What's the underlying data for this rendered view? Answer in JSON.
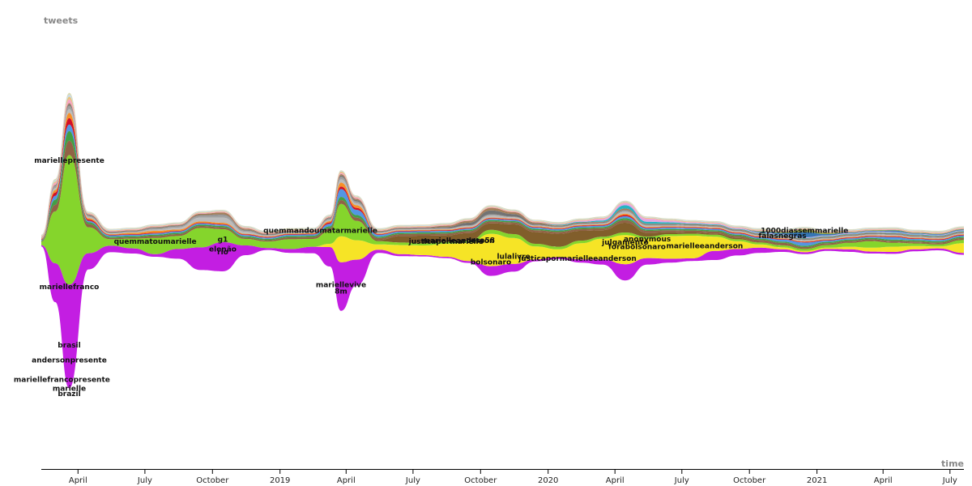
{
  "chart_data": {
    "type": "area",
    "subtype": "streamgraph",
    "ylabel": "tweets",
    "xlabel": "time",
    "x_ticks": [
      "April",
      "July",
      "October",
      "2019",
      "April",
      "July",
      "October",
      "2020",
      "April",
      "July",
      "October",
      "2021",
      "April",
      "July"
    ],
    "x_tick_dates": [
      "2018-04-01",
      "2018-07-01",
      "2018-10-01",
      "2019-01-01",
      "2019-04-01",
      "2019-07-01",
      "2019-10-01",
      "2020-01-01",
      "2020-04-01",
      "2020-07-01",
      "2020-10-01",
      "2021-01-01",
      "2021-04-01",
      "2021-07-01"
    ],
    "x_range": [
      "2018-02-10",
      "2021-07-20"
    ],
    "grid": false,
    "legend": "none (inline labels)",
    "time_points": [
      "2018-02-10",
      "2018-03-01",
      "2018-03-20",
      "2018-04-15",
      "2018-05-15",
      "2018-06-15",
      "2018-07-15",
      "2018-08-15",
      "2018-09-15",
      "2018-10-15",
      "2018-11-15",
      "2018-12-15",
      "2019-01-15",
      "2019-02-15",
      "2019-03-10",
      "2019-03-25",
      "2019-04-15",
      "2019-05-15",
      "2019-06-15",
      "2019-07-15",
      "2019-08-15",
      "2019-09-15",
      "2019-10-15",
      "2019-11-15",
      "2019-12-15",
      "2020-01-15",
      "2020-02-15",
      "2020-03-15",
      "2020-04-15",
      "2020-05-15",
      "2020-06-15",
      "2020-07-15",
      "2020-08-15",
      "2020-09-15",
      "2020-10-15",
      "2020-11-15",
      "2020-12-15",
      "2021-01-15",
      "2021-02-15",
      "2021-03-15",
      "2021-04-15",
      "2021-05-15",
      "2021-06-15",
      "2021-07-20"
    ],
    "series": [
      {
        "name": "mariellepresente",
        "color": "#c012e0",
        "values": [
          2,
          60,
          160,
          25,
          10,
          8,
          4,
          15,
          35,
          45,
          15,
          3,
          6,
          10,
          30,
          75,
          40,
          5,
          3,
          2,
          2,
          3,
          15,
          12,
          3,
          3,
          5,
          8,
          25,
          10,
          6,
          4,
          14,
          10,
          8,
          4,
          3,
          3,
          4,
          3,
          3,
          3,
          3,
          3
        ]
      },
      {
        "name": "quemmandoumatarmarielle",
        "color": "#f5e31a",
        "values": [
          0,
          0,
          0,
          0,
          0,
          0,
          0,
          0,
          0,
          0,
          0,
          0,
          0,
          0,
          5,
          40,
          30,
          8,
          14,
          15,
          20,
          28,
          50,
          40,
          20,
          12,
          25,
          32,
          45,
          30,
          35,
          35,
          22,
          12,
          5,
          3,
          2,
          2,
          4,
          6,
          8,
          5,
          3,
          15
        ]
      },
      {
        "name": "g1",
        "color": "#7ed321",
        "values": [
          5,
          80,
          200,
          40,
          10,
          15,
          25,
          20,
          30,
          20,
          10,
          10,
          15,
          12,
          20,
          50,
          30,
          5,
          4,
          3,
          3,
          3,
          6,
          6,
          4,
          4,
          4,
          3,
          4,
          3,
          3,
          3,
          3,
          3,
          3,
          3,
          3,
          4,
          6,
          10,
          6,
          4,
          3,
          5
        ]
      },
      {
        "name": "justicapormarielleeanderson",
        "color": "#7a5520",
        "values": [
          0,
          0,
          0,
          0,
          0,
          0,
          0,
          0,
          0,
          0,
          0,
          0,
          0,
          0,
          0,
          0,
          0,
          2,
          10,
          12,
          10,
          12,
          10,
          15,
          18,
          20,
          15,
          10,
          15,
          6,
          3,
          2,
          2,
          2,
          1,
          1,
          1,
          1,
          1,
          1,
          1,
          1,
          1,
          1
        ]
      },
      {
        "name": "mariellefranco",
        "color": "#8b5a3c",
        "values": [
          1,
          10,
          22,
          5,
          2,
          2,
          3,
          3,
          3,
          3,
          2,
          2,
          3,
          3,
          4,
          6,
          5,
          3,
          3,
          3,
          3,
          3,
          3,
          3,
          3,
          3,
          3,
          3,
          4,
          3,
          3,
          3,
          3,
          3,
          3,
          3,
          2,
          2,
          2,
          2,
          2,
          2,
          2,
          2
        ]
      },
      {
        "name": "mariellevive",
        "color": "#3a9a3a",
        "values": [
          1,
          8,
          15,
          3,
          2,
          2,
          2,
          2,
          2,
          2,
          2,
          2,
          2,
          2,
          3,
          5,
          4,
          2,
          2,
          2,
          2,
          2,
          2,
          2,
          2,
          2,
          2,
          2,
          3,
          2,
          2,
          2,
          2,
          2,
          2,
          2,
          2,
          2,
          2,
          2,
          2,
          2,
          2,
          2
        ]
      },
      {
        "name": "8m",
        "color": "#4a90e2",
        "values": [
          1,
          6,
          10,
          2,
          2,
          2,
          2,
          2,
          2,
          2,
          2,
          2,
          2,
          2,
          4,
          12,
          8,
          3,
          2,
          2,
          2,
          2,
          2,
          2,
          2,
          2,
          2,
          2,
          3,
          2,
          2,
          2,
          2,
          2,
          2,
          3,
          5,
          2,
          2,
          2,
          4,
          2,
          2,
          2
        ]
      },
      {
        "name": "brasil",
        "color": "#d0021b",
        "values": [
          1,
          5,
          10,
          2,
          1,
          1,
          1,
          1,
          1,
          1,
          1,
          1,
          1,
          1,
          2,
          4,
          3,
          1,
          1,
          1,
          1,
          1,
          1,
          1,
          1,
          1,
          1,
          1,
          2,
          1,
          1,
          1,
          1,
          1,
          1,
          1,
          1,
          1,
          1,
          1,
          1,
          1,
          1,
          1
        ]
      },
      {
        "name": "quemmatoumarielle",
        "color": "#f58a1e",
        "values": [
          1,
          4,
          8,
          2,
          1,
          2,
          3,
          2,
          2,
          2,
          1,
          1,
          1,
          1,
          2,
          6,
          4,
          1,
          1,
          1,
          1,
          1,
          1,
          1,
          1,
          1,
          1,
          1,
          2,
          1,
          1,
          1,
          1,
          1,
          1,
          1,
          1,
          1,
          1,
          1,
          1,
          1,
          1,
          1
        ]
      },
      {
        "name": "elenão",
        "color": "#b8b8b8",
        "values": [
          1,
          3,
          6,
          2,
          1,
          1,
          2,
          3,
          6,
          8,
          3,
          1,
          1,
          1,
          2,
          5,
          3,
          1,
          1,
          1,
          1,
          2,
          3,
          2,
          1,
          1,
          1,
          1,
          3,
          2,
          1,
          1,
          1,
          1,
          1,
          1,
          1,
          1,
          1,
          1,
          1,
          1,
          1,
          1
        ]
      },
      {
        "name": "rio",
        "color": "#9b9b9b",
        "values": [
          1,
          3,
          5,
          2,
          1,
          1,
          2,
          2,
          3,
          4,
          2,
          1,
          1,
          1,
          2,
          4,
          3,
          1,
          1,
          1,
          1,
          1,
          2,
          1,
          1,
          1,
          1,
          1,
          2,
          1,
          1,
          1,
          1,
          1,
          1,
          1,
          1,
          1,
          1,
          1,
          1,
          1,
          1,
          1
        ]
      },
      {
        "name": "lulalivre",
        "color": "#6b6b6b",
        "values": [
          0,
          1,
          2,
          1,
          1,
          1,
          1,
          1,
          1,
          1,
          1,
          1,
          1,
          1,
          1,
          2,
          2,
          1,
          1,
          1,
          2,
          4,
          6,
          4,
          2,
          1,
          1,
          1,
          1,
          1,
          1,
          1,
          1,
          1,
          1,
          1,
          1,
          1,
          1,
          1,
          1,
          1,
          1,
          1
        ]
      },
      {
        "name": "bolsonaro",
        "color": "#a07850",
        "values": [
          0,
          1,
          2,
          1,
          1,
          1,
          1,
          1,
          2,
          3,
          2,
          1,
          1,
          1,
          1,
          2,
          2,
          1,
          1,
          1,
          2,
          3,
          4,
          3,
          2,
          1,
          1,
          1,
          2,
          1,
          1,
          1,
          1,
          1,
          1,
          1,
          1,
          1,
          1,
          1,
          1,
          1,
          1,
          1
        ]
      },
      {
        "name": "julgamento",
        "color": "#1ab0c0",
        "values": [
          0,
          0,
          0,
          0,
          0,
          0,
          0,
          0,
          0,
          0,
          0,
          0,
          0,
          0,
          0,
          0,
          0,
          0,
          0,
          0,
          0,
          0,
          0,
          0,
          0,
          1,
          1,
          2,
          5,
          3,
          2,
          1,
          1,
          1,
          1,
          1,
          1,
          1,
          1,
          1,
          1,
          1,
          1,
          1
        ]
      },
      {
        "name": "anonymous",
        "color": "#e0a0e0",
        "values": [
          0,
          0,
          0,
          0,
          0,
          0,
          0,
          0,
          0,
          0,
          0,
          0,
          0,
          0,
          0,
          0,
          0,
          0,
          0,
          0,
          0,
          0,
          0,
          0,
          0,
          0,
          1,
          2,
          3,
          4,
          2,
          1,
          1,
          1,
          1,
          1,
          1,
          1,
          1,
          1,
          1,
          1,
          1,
          1
        ]
      },
      {
        "name": "1000diassemmarielle",
        "color": "#2a6fb0",
        "values": [
          0,
          0,
          0,
          0,
          0,
          0,
          0,
          0,
          0,
          0,
          0,
          0,
          0,
          0,
          0,
          0,
          0,
          0,
          0,
          0,
          0,
          0,
          0,
          0,
          0,
          0,
          0,
          0,
          0,
          0,
          0,
          0,
          0,
          0,
          1,
          2,
          8,
          2,
          1,
          1,
          2,
          1,
          1,
          1
        ]
      },
      {
        "name": "falasnegras",
        "color": "#8fa040",
        "values": [
          0,
          0,
          0,
          0,
          0,
          0,
          0,
          0,
          0,
          0,
          0,
          0,
          0,
          0,
          0,
          0,
          0,
          0,
          0,
          0,
          0,
          0,
          0,
          0,
          0,
          0,
          0,
          0,
          0,
          0,
          0,
          0,
          0,
          0,
          1,
          2,
          4,
          2,
          1,
          1,
          1,
          1,
          1,
          1
        ]
      },
      {
        "name": "andersonpresente",
        "color": "#f5a0c0",
        "values": [
          1,
          3,
          6,
          1,
          1,
          1,
          1,
          1,
          1,
          1,
          1,
          1,
          1,
          1,
          1,
          2,
          2,
          1,
          1,
          1,
          1,
          1,
          1,
          1,
          1,
          1,
          1,
          1,
          1,
          1,
          1,
          1,
          1,
          1,
          1,
          1,
          1,
          1,
          1,
          1,
          1,
          1,
          1,
          1
        ]
      },
      {
        "name": "mariellefrancopresente",
        "color": "#e8c070",
        "values": [
          1,
          2,
          4,
          1,
          1,
          1,
          1,
          1,
          1,
          1,
          1,
          1,
          1,
          1,
          1,
          2,
          1,
          1,
          1,
          1,
          1,
          1,
          1,
          1,
          1,
          1,
          1,
          1,
          1,
          1,
          1,
          1,
          1,
          1,
          1,
          1,
          1,
          1,
          1,
          1,
          1,
          1,
          1,
          1
        ]
      },
      {
        "name": "marielle",
        "color": "#c0d8f0",
        "values": [
          1,
          2,
          3,
          1,
          1,
          1,
          1,
          1,
          1,
          1,
          1,
          1,
          1,
          1,
          1,
          1,
          1,
          1,
          1,
          1,
          1,
          1,
          1,
          1,
          1,
          1,
          1,
          1,
          1,
          1,
          1,
          1,
          1,
          1,
          1,
          1,
          1,
          1,
          1,
          1,
          1,
          1,
          1,
          1
        ]
      },
      {
        "name": "brazil",
        "color": "#d8d8b0",
        "values": [
          1,
          2,
          3,
          1,
          1,
          1,
          1,
          1,
          1,
          1,
          1,
          1,
          1,
          1,
          1,
          1,
          1,
          1,
          1,
          1,
          1,
          1,
          1,
          1,
          1,
          1,
          1,
          1,
          1,
          1,
          1,
          1,
          1,
          1,
          1,
          1,
          1,
          1,
          1,
          1,
          1,
          1,
          1,
          1
        ]
      }
    ],
    "series_labels": [
      {
        "text": "mariellepresente",
        "date": "2018-03-20",
        "y": 120
      },
      {
        "text": "mariellefranco",
        "date": "2018-03-20",
        "y": -75
      },
      {
        "text": "brasil",
        "date": "2018-03-20",
        "y": -165
      },
      {
        "text": "andersonpresente",
        "date": "2018-03-20",
        "y": -188
      },
      {
        "text": "mariellefrancopresente",
        "date": "2018-03-10",
        "y": -218
      },
      {
        "text": "marielle",
        "date": "2018-03-20",
        "y": -232
      },
      {
        "text": "brazil",
        "date": "2018-03-20",
        "y": -240
      },
      {
        "text": "quemmatoumarielle",
        "date": "2018-07-15",
        "y": -5
      },
      {
        "text": "g1",
        "date": "2018-10-15",
        "y": -2
      },
      {
        "text": "elenão",
        "date": "2018-10-15",
        "y": -17
      },
      {
        "text": "rio",
        "date": "2018-10-15",
        "y": -21
      },
      {
        "text": "quemmandoumatarmarielle",
        "date": "2019-02-25",
        "y": 12
      },
      {
        "text": "mariellevive",
        "date": "2019-03-25",
        "y": -72
      },
      {
        "text": "8m",
        "date": "2019-03-25",
        "y": -82
      },
      {
        "text": "justicapormarielle",
        "date": "2019-08-15",
        "y": -5
      },
      {
        "text": "marielleanderson",
        "date": "2019-09-01",
        "y": -4
      },
      {
        "text": "casa58",
        "date": "2019-10-01",
        "y": -3
      },
      {
        "text": "lulalivre",
        "date": "2019-11-15",
        "y": -28
      },
      {
        "text": "bolsonaro",
        "date": "2019-10-15",
        "y": -37
      },
      {
        "text": "justicapormarielleeanderson",
        "date": "2020-02-10",
        "y": -31
      },
      {
        "text": "julgamento",
        "date": "2020-04-15",
        "y": -6
      },
      {
        "text": "anonymous",
        "date": "2020-05-15",
        "y": -1
      },
      {
        "text": "forabolsonaro",
        "date": "2020-05-01",
        "y": -13
      },
      {
        "text": "marielleeanderson",
        "date": "2020-08-01",
        "y": -12
      },
      {
        "text": "1000diassemmarielle",
        "date": "2020-12-15",
        "y": 12
      },
      {
        "text": "falasnegras",
        "date": "2020-11-15",
        "y": 4
      }
    ]
  }
}
